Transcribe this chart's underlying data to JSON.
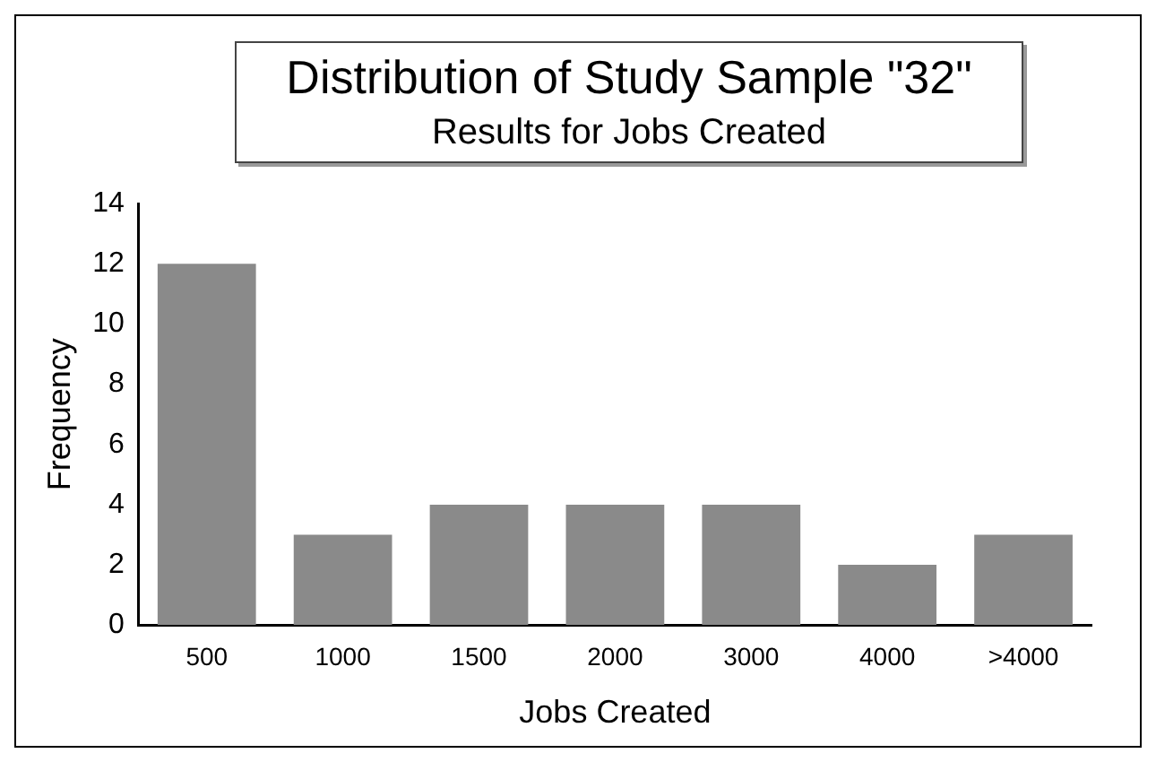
{
  "chart_data": {
    "type": "bar",
    "title": "Distribution of Study Sample \"32\"",
    "subtitle": "Results for Jobs Created",
    "xlabel": "Jobs Created",
    "ylabel": "Frequency",
    "categories": [
      "500",
      "1000",
      "1500",
      "2000",
      "3000",
      "4000",
      ">4000"
    ],
    "values": [
      12,
      3,
      4,
      4,
      4,
      2,
      3
    ],
    "color": "#8a8a8a",
    "ylim": [
      0,
      14
    ],
    "yticks": [
      0,
      2,
      4,
      6,
      8,
      10,
      12,
      14
    ],
    "grid": false,
    "legend": false
  }
}
